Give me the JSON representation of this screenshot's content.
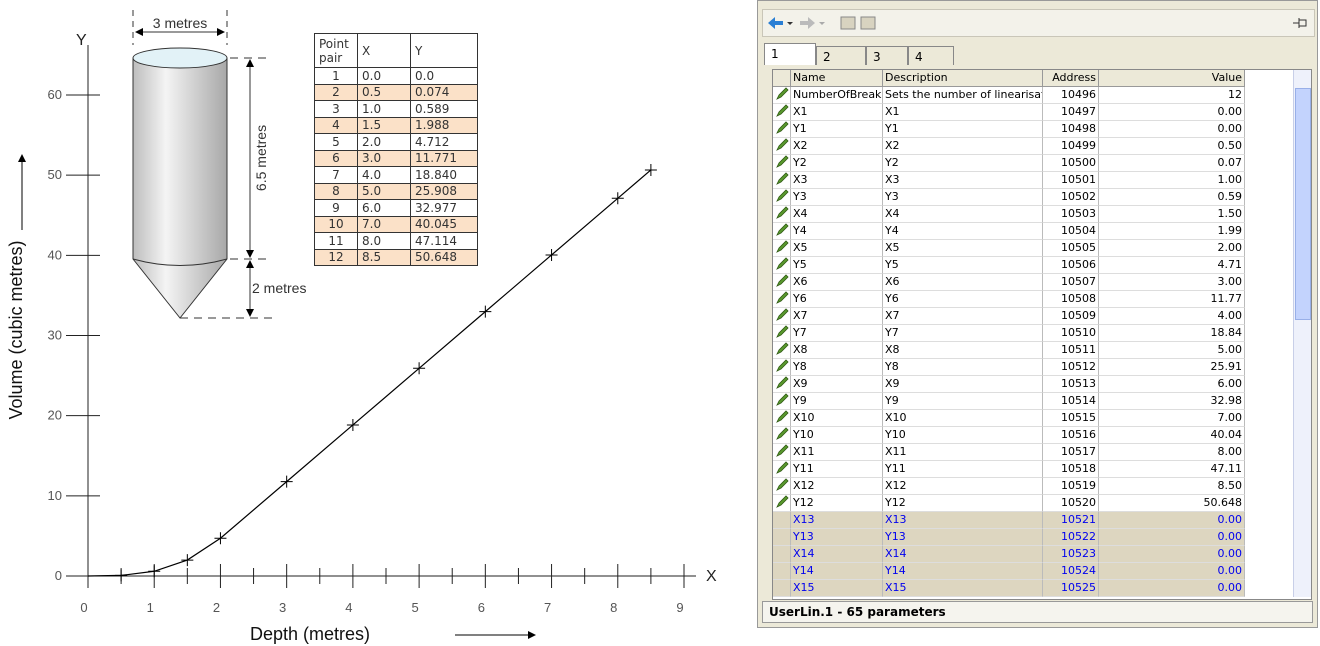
{
  "chart_data": {
    "type": "line",
    "x_label": "Depth (metres)",
    "y_label": "Volume (cubic metres)",
    "x_axis_name": "X",
    "y_axis_name": "Y",
    "x": [
      0,
      0.5,
      1,
      1.5,
      2,
      3,
      4,
      5,
      6,
      7,
      8,
      8.5
    ],
    "series": [
      {
        "color": "#000000",
        "values": [
          0,
          0.074,
          0.589,
          1.988,
          4.712,
          11.771,
          18.84,
          25.908,
          32.977,
          40.045,
          47.114,
          50.648
        ]
      }
    ],
    "xlim": [
      0,
      9
    ],
    "ylim": [
      0,
      60
    ],
    "xticks": [
      0,
      1,
      2,
      3,
      4,
      5,
      6,
      7,
      8,
      9
    ],
    "yticks": [
      0,
      10,
      20,
      30,
      40,
      50,
      60
    ]
  },
  "silo": {
    "diameter": "3 metres",
    "height": "6.5 metres",
    "cone_height": "2 metres"
  },
  "point_table": {
    "columns": [
      "Point pair",
      "X",
      "Y"
    ],
    "rows": [
      [
        "1",
        "0.0",
        "0.0"
      ],
      [
        "2",
        "0.5",
        "0.074"
      ],
      [
        "3",
        "1.0",
        "0.589"
      ],
      [
        "4",
        "1.5",
        "1.988"
      ],
      [
        "5",
        "2.0",
        "4.712"
      ],
      [
        "6",
        "3.0",
        "11.771"
      ],
      [
        "7",
        "4.0",
        "18.840"
      ],
      [
        "8",
        "5.0",
        "25.908"
      ],
      [
        "9",
        "6.0",
        "32.977"
      ],
      [
        "10",
        "7.0",
        "40.045"
      ],
      [
        "11",
        "8.0",
        "47.114"
      ],
      [
        "12",
        "8.5",
        "50.648"
      ]
    ]
  },
  "window": {
    "tabs": [
      "1",
      "2",
      "3",
      "4"
    ],
    "columns": [
      "Name",
      "Description",
      "Address",
      "Value"
    ],
    "rows": [
      [
        "NumberOfBreak",
        "Sets the number of linearisati",
        "10496",
        "12"
      ],
      [
        "X1",
        "X1",
        "10497",
        "0.00"
      ],
      [
        "Y1",
        "Y1",
        "10498",
        "0.00"
      ],
      [
        "X2",
        "X2",
        "10499",
        "0.50"
      ],
      [
        "Y2",
        "Y2",
        "10500",
        "0.07"
      ],
      [
        "X3",
        "X3",
        "10501",
        "1.00"
      ],
      [
        "Y3",
        "Y3",
        "10502",
        "0.59"
      ],
      [
        "X4",
        "X4",
        "10503",
        "1.50"
      ],
      [
        "Y4",
        "Y4",
        "10504",
        "1.99"
      ],
      [
        "X5",
        "X5",
        "10505",
        "2.00"
      ],
      [
        "Y5",
        "Y5",
        "10506",
        "4.71"
      ],
      [
        "X6",
        "X6",
        "10507",
        "3.00"
      ],
      [
        "Y6",
        "Y6",
        "10508",
        "11.77"
      ],
      [
        "X7",
        "X7",
        "10509",
        "4.00"
      ],
      [
        "Y7",
        "Y7",
        "10510",
        "18.84"
      ],
      [
        "X8",
        "X8",
        "10511",
        "5.00"
      ],
      [
        "Y8",
        "Y8",
        "10512",
        "25.91"
      ],
      [
        "X9",
        "X9",
        "10513",
        "6.00"
      ],
      [
        "Y9",
        "Y9",
        "10514",
        "32.98"
      ],
      [
        "X10",
        "X10",
        "10515",
        "7.00"
      ],
      [
        "Y10",
        "Y10",
        "10516",
        "40.04"
      ],
      [
        "X11",
        "X11",
        "10517",
        "8.00"
      ],
      [
        "Y11",
        "Y11",
        "10518",
        "47.11"
      ],
      [
        "X12",
        "X12",
        "10519",
        "8.50"
      ],
      [
        "Y12",
        "Y12",
        "10520",
        "50.648"
      ],
      [
        "X13",
        "X13",
        "10521",
        "0.00"
      ],
      [
        "Y13",
        "Y13",
        "10522",
        "0.00"
      ],
      [
        "X14",
        "X14",
        "10523",
        "0.00"
      ],
      [
        "Y14",
        "Y14",
        "10524",
        "0.00"
      ],
      [
        "X15",
        "X15",
        "10525",
        "0.00"
      ]
    ],
    "status": "UserLin.1  -  65 parameters"
  }
}
